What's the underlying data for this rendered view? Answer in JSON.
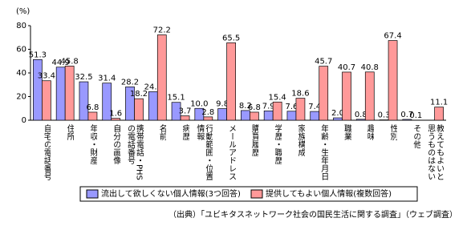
{
  "chart_data": {
    "type": "bar",
    "y_axis_label": "(%)",
    "categories": [
      "自宅の電話番号",
      "住所",
      "年収・財産",
      "自分の画像",
      "携帯電話・PHSの電話番号",
      "名前",
      "病歴",
      "行動範囲・位置情報",
      "メールアドレス",
      "購買履歴",
      "学歴・職歴",
      "家族構成",
      "年齢・生年月日",
      "職業",
      "趣味",
      "性別",
      "その他",
      "教えてもよいと思うものはない"
    ],
    "series": [
      {
        "name": "流出して欲しくない個人情報(3つ回答)",
        "color": "#9999ff",
        "values": [
          51.3,
          44.9,
          32.5,
          31.4,
          28.2,
          24.1,
          15.1,
          10.0,
          9.8,
          8.2,
          7.9,
          7.6,
          7.4,
          2.0,
          0.8,
          0.3,
          0.7,
          null
        ],
        "value_labels": [
          "51.3",
          "44.9",
          "32.5",
          "31.4",
          "28.2",
          "24.1",
          "15.1",
          "10.0",
          "9.8",
          "8.2",
          "7.9",
          "7.6",
          "7.4",
          "2.0",
          "0.8",
          "0.3",
          "0.7",
          null
        ]
      },
      {
        "name": "提供してもよい個人情報(複数回答)",
        "color": "#ff9999",
        "values": [
          33.4,
          45.8,
          6.8,
          1.6,
          18.2,
          72.2,
          3.7,
          2.8,
          65.5,
          6.8,
          15.4,
          18.6,
          45.7,
          40.7,
          40.8,
          67.4,
          0.1,
          11.1
        ],
        "value_labels": [
          "33.4",
          "45.8",
          "6.8",
          "1.6",
          "18.2",
          "72.2",
          "3.7",
          "2.8",
          "65.5",
          "6.8",
          "15.4",
          "18.6",
          "45.7",
          "40.7",
          "40.8",
          "67.4",
          "0.1",
          "11.1"
        ]
      }
    ],
    "ylim": [
      0,
      80
    ],
    "yticks": [
      0,
      20,
      40,
      60,
      80
    ],
    "source": "（出典）「ユビキタスネットワーク社会の国民生活に関する調査」（ウェブ調査）"
  }
}
